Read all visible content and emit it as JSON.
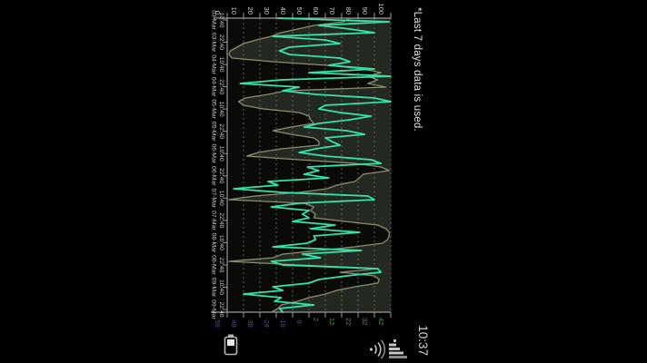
{
  "note": {
    "text": "*Last 7 days data is used."
  },
  "status_bar": {
    "clock": "10:37",
    "icons": [
      "battery-icon",
      "signal-bars-icon",
      "wifi-icon"
    ]
  },
  "colors": {
    "background": "#000000",
    "plot_background": "#232820",
    "area_fill": "#0a0b08",
    "gridline": "#6f6f6f",
    "axis": "#9a9a9a",
    "tick_label": "#cfcfcf",
    "humidity_line": "#35e3a9",
    "temperature_line": "#8a8f6d",
    "negative_tick": "#3d4cd6",
    "positive_tick": "#35a435",
    "icon": "#c4c4c4"
  },
  "chart_data": {
    "type": "line",
    "title": "",
    "legend": "none",
    "grid": "dashed value gridlines",
    "left_axis": {
      "labels": [
        "0",
        "10",
        "20",
        "30",
        "40",
        "50",
        "60",
        "70",
        "80",
        "90",
        "100"
      ],
      "range": [
        0,
        100
      ]
    },
    "right_axis": {
      "labels": [
        "-58",
        "-48",
        "-38",
        "-28",
        "-18",
        "-8",
        "2",
        "12",
        "22",
        "32",
        "42"
      ],
      "range": [
        -58,
        42
      ]
    },
    "x_axis": {
      "ticks": [
        {
          "time": "10:40",
          "date": "03-Mar"
        },
        {
          "time": "22:40",
          "date": "03-Mar"
        },
        {
          "time": "10:40",
          "date": "04-Mar"
        },
        {
          "time": "22:40",
          "date": "04-Mar"
        },
        {
          "time": "10:40",
          "date": "05-Mar"
        },
        {
          "time": "22:40",
          "date": "05-Mar"
        },
        {
          "time": "10:40",
          "date": "06-Mar"
        },
        {
          "time": "22:40",
          "date": "06-Mar"
        },
        {
          "time": "10:40",
          "date": "07-Mar"
        },
        {
          "time": "22:40",
          "date": "07-Mar"
        },
        {
          "time": "10:40",
          "date": "08-Mar"
        },
        {
          "time": "22:40",
          "date": "08-Mar"
        },
        {
          "time": "10:40",
          "date": "09-Mar"
        },
        {
          "time": "22:40",
          "date": "09-Mar"
        }
      ]
    },
    "series": [
      {
        "name": "humidity",
        "axis": "left",
        "style": "jagged line",
        "values": [
          31,
          99,
          56,
          75,
          90,
          28,
          60,
          69,
          38,
          32,
          38,
          69,
          75,
          62,
          90,
          50,
          100,
          33,
          8,
          44,
          34,
          54,
          90,
          100,
          60,
          56,
          69,
          88,
          75,
          56,
          47,
          73,
          84,
          60,
          64,
          69,
          54,
          44,
          60,
          88,
          94,
          49,
          56,
          47,
          62,
          25,
          31,
          4,
          33,
          86,
          90,
          44,
          27,
          50,
          46,
          50,
          40,
          66,
          51,
          81,
          53,
          54,
          49,
          28,
          82,
          46,
          57,
          27,
          34,
          92,
          94,
          73,
          56,
          50,
          28,
          34,
          10,
          33,
          29,
          53,
          32,
          34
        ]
      },
      {
        "name": "temperature",
        "axis": "right",
        "style": "area line filled dark below",
        "values": [
          17,
          13,
          -5,
          -15,
          -25,
          -31,
          -40,
          -48,
          -52,
          -56,
          -57,
          -55,
          -30,
          3,
          25,
          36,
          28,
          34,
          28,
          39,
          -22,
          -33,
          -47,
          -51,
          -48,
          -36,
          -14,
          -8,
          -7,
          -5,
          -19,
          -30,
          -19,
          -5,
          -2,
          -2,
          -25,
          -39,
          -46,
          -14,
          20,
          36,
          41,
          25,
          23,
          20,
          9,
          3,
          -14,
          -41,
          -57,
          -11,
          -5,
          -7,
          -4,
          -5,
          14,
          34,
          39,
          41,
          41,
          40,
          37,
          20,
          -2,
          -24,
          -30,
          -57,
          -14,
          34,
          11,
          32,
          35,
          34,
          20,
          9,
          2,
          -8,
          -15,
          -25,
          -27,
          -31
        ]
      }
    ]
  }
}
